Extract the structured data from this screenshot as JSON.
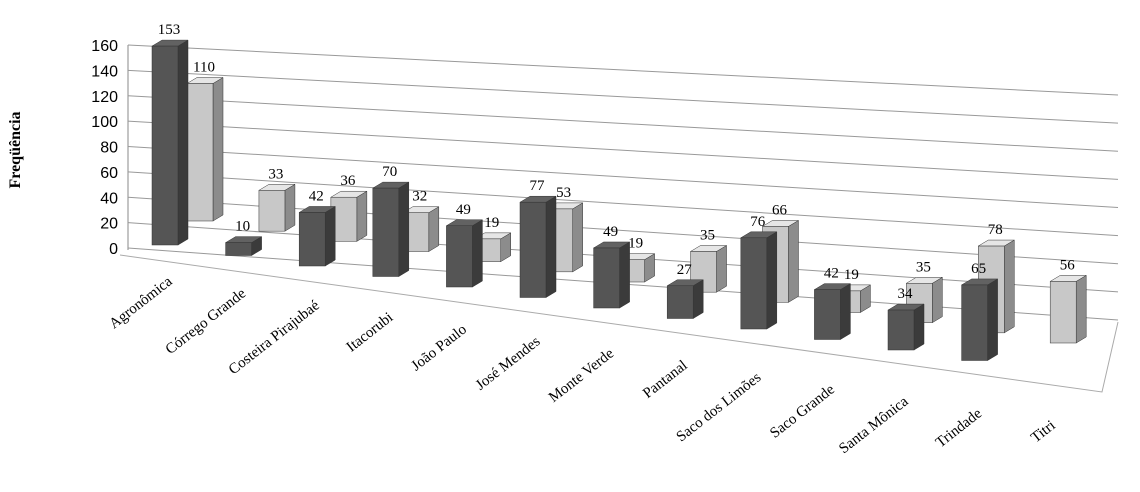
{
  "chart_data": {
    "type": "bar3d",
    "y_label": "Freqüência",
    "categories": [
      "Agronômica",
      "Córrego Grande",
      "Costeira Pirajubaé",
      "Itacorubi",
      "João Paulo",
      "José Mendes",
      "Monte Verde",
      "Pantanal",
      "Saco dos Limões",
      "Saco Grande",
      "Santa Mônica",
      "Trindade",
      "Titri"
    ],
    "series": [
      {
        "color": "#555555",
        "values": [
          153,
          10,
          42,
          70,
          49,
          77,
          49,
          27,
          76,
          42,
          34,
          65,
          null
        ]
      },
      {
        "color": "#c8c8c8",
        "values": [
          110,
          33,
          36,
          32,
          19,
          53,
          19,
          35,
          66,
          19,
          35,
          78,
          56
        ]
      }
    ],
    "ylim": [
      0,
      160
    ],
    "yticks": [
      0,
      20,
      40,
      60,
      80,
      100,
      120,
      140,
      160
    ],
    "grid": true
  }
}
